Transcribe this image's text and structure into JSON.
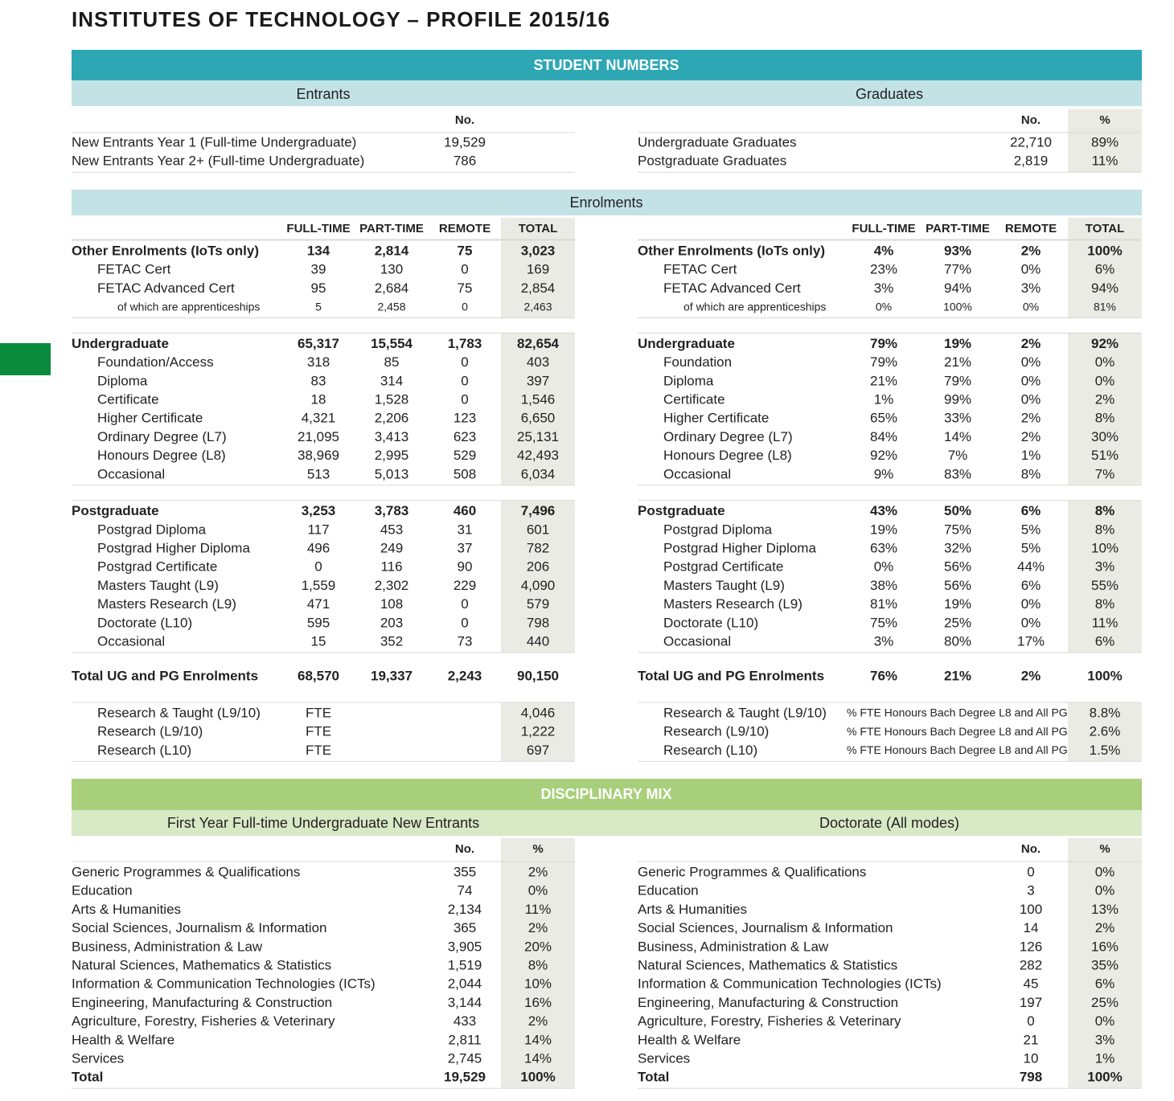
{
  "title": "INSTITUTES OF TECHNOLOGY – PROFILE 2015/16",
  "student_numbers": {
    "heading": "STUDENT NUMBERS",
    "entrants": {
      "heading": "Entrants",
      "columns": [
        "No."
      ],
      "rows": [
        [
          "New Entrants Year 1 (Full-time Undergraduate)",
          "19,529"
        ],
        [
          "New Entrants Year 2+ (Full-time Undergraduate)",
          "786"
        ]
      ]
    },
    "graduates": {
      "heading": "Graduates",
      "columns": [
        "No.",
        "%"
      ],
      "rows": [
        [
          "Undergraduate Graduates",
          "22,710",
          "89%"
        ],
        [
          "Postgraduate Graduates",
          "2,819",
          "11%"
        ]
      ]
    }
  },
  "enrolments": {
    "heading": "Enrolments",
    "numbers": {
      "columns": [
        "FULL-TIME",
        "PART-TIME",
        "REMOTE",
        "TOTAL"
      ],
      "groups": [
        {
          "total": [
            "Other Enrolments (IoTs only)",
            "134",
            "2,814",
            "75",
            "3,023"
          ],
          "items": [
            [
              "FETAC Cert",
              "39",
              "130",
              "0",
              "169"
            ],
            [
              "FETAC Advanced Cert",
              "95",
              "2,684",
              "75",
              "2,854"
            ]
          ],
          "detail": [
            [
              "of which are apprenticeships",
              "5",
              "2,458",
              "0",
              "2,463"
            ]
          ]
        },
        {
          "total": [
            "Undergraduate",
            "65,317",
            "15,554",
            "1,783",
            "82,654"
          ],
          "items": [
            [
              "Foundation/Access",
              "318",
              "85",
              "0",
              "403"
            ],
            [
              "Diploma",
              "83",
              "314",
              "0",
              "397"
            ],
            [
              "Certificate",
              "18",
              "1,528",
              "0",
              "1,546"
            ],
            [
              "Higher Certificate",
              "4,321",
              "2,206",
              "123",
              "6,650"
            ],
            [
              "Ordinary Degree (L7)",
              "21,095",
              "3,413",
              "623",
              "25,131"
            ],
            [
              "Honours Degree (L8)",
              "38,969",
              "2,995",
              "529",
              "42,493"
            ],
            [
              "Occasional",
              "513",
              "5,013",
              "508",
              "6,034"
            ]
          ]
        },
        {
          "total": [
            "Postgraduate",
            "3,253",
            "3,783",
            "460",
            "7,496"
          ],
          "items": [
            [
              "Postgrad Diploma",
              "117",
              "453",
              "31",
              "601"
            ],
            [
              "Postgrad Higher Diploma",
              "496",
              "249",
              "37",
              "782"
            ],
            [
              "Postgrad Certificate",
              "0",
              "116",
              "90",
              "206"
            ],
            [
              "Masters Taught (L9)",
              "1,559",
              "2,302",
              "229",
              "4,090"
            ],
            [
              "Masters Research (L9)",
              "471",
              "108",
              "0",
              "579"
            ],
            [
              "Doctorate (L10)",
              "595",
              "203",
              "0",
              "798"
            ],
            [
              "Occasional",
              "15",
              "352",
              "73",
              "440"
            ]
          ]
        }
      ],
      "grand_total": [
        "Total UG and PG Enrolments",
        "68,570",
        "19,337",
        "2,243",
        "90,150"
      ],
      "fte": [
        [
          "Research & Taught (L9/10)",
          "FTE",
          "4,046"
        ],
        [
          "Research (L9/10)",
          "FTE",
          "1,222"
        ],
        [
          "Research (L10)",
          "FTE",
          "697"
        ]
      ]
    },
    "shares": {
      "columns": [
        "FULL-TIME",
        "PART-TIME",
        "REMOTE",
        "TOTAL"
      ],
      "groups": [
        {
          "total": [
            "Other Enrolments (IoTs only)",
            "4%",
            "93%",
            "2%",
            "100%"
          ],
          "items": [
            [
              "FETAC Cert",
              "23%",
              "77%",
              "0%",
              "6%"
            ],
            [
              "FETAC Advanced Cert",
              "3%",
              "94%",
              "3%",
              "94%"
            ]
          ],
          "detail": [
            [
              "of which are apprenticeships",
              "0%",
              "100%",
              "0%",
              "81%"
            ]
          ]
        },
        {
          "total": [
            "Undergraduate",
            "79%",
            "19%",
            "2%",
            "92%"
          ],
          "items": [
            [
              "Foundation",
              "79%",
              "21%",
              "0%",
              "0%"
            ],
            [
              "Diploma",
              "21%",
              "79%",
              "0%",
              "0%"
            ],
            [
              "Certificate",
              "1%",
              "99%",
              "0%",
              "2%"
            ],
            [
              "Higher Certificate",
              "65%",
              "33%",
              "2%",
              "8%"
            ],
            [
              "Ordinary Degree (L7)",
              "84%",
              "14%",
              "2%",
              "30%"
            ],
            [
              "Honours Degree (L8)",
              "92%",
              "7%",
              "1%",
              "51%"
            ],
            [
              "Occasional",
              "9%",
              "83%",
              "8%",
              "7%"
            ]
          ]
        },
        {
          "total": [
            "Postgraduate",
            "43%",
            "50%",
            "6%",
            "8%"
          ],
          "items": [
            [
              "Postgrad Diploma",
              "19%",
              "75%",
              "5%",
              "8%"
            ],
            [
              "Postgrad Higher Diploma",
              "63%",
              "32%",
              "5%",
              "10%"
            ],
            [
              "Postgrad Certificate",
              "0%",
              "56%",
              "44%",
              "3%"
            ],
            [
              "Masters Taught (L9)",
              "38%",
              "56%",
              "6%",
              "55%"
            ],
            [
              "Masters Research (L9)",
              "81%",
              "19%",
              "0%",
              "8%"
            ],
            [
              "Doctorate (L10)",
              "75%",
              "25%",
              "0%",
              "11%"
            ],
            [
              "Occasional",
              "3%",
              "80%",
              "17%",
              "6%"
            ]
          ]
        }
      ],
      "grand_total": [
        "Total UG and PG Enrolments",
        "76%",
        "21%",
        "2%",
        "100%"
      ],
      "fte": [
        [
          "Research & Taught (L9/10)",
          "% FTE Honours Bach Degree L8 and All PG",
          "8.8%"
        ],
        [
          "Research (L9/10)",
          "% FTE Honours Bach Degree L8 and All PG",
          "2.6%"
        ],
        [
          "Research (L10)",
          "% FTE Honours Bach Degree L8 and All PG",
          "1.5%"
        ]
      ]
    }
  },
  "disciplinary_mix": {
    "heading": "DISCIPLINARY MIX",
    "new_entrants": {
      "heading": "First Year Full-time Undergraduate New Entrants",
      "columns": [
        "No.",
        "%"
      ],
      "rows": [
        [
          "Generic Programmes & Qualifications",
          "355",
          "2%"
        ],
        [
          "Education",
          "74",
          "0%"
        ],
        [
          "Arts & Humanities",
          "2,134",
          "11%"
        ],
        [
          "Social Sciences, Journalism & Information",
          "365",
          "2%"
        ],
        [
          "Business, Administration & Law",
          "3,905",
          "20%"
        ],
        [
          "Natural Sciences, Mathematics & Statistics",
          "1,519",
          "8%"
        ],
        [
          "Information & Communication Technologies (ICTs)",
          "2,044",
          "10%"
        ],
        [
          "Engineering, Manufacturing & Construction",
          "3,144",
          "16%"
        ],
        [
          "Agriculture, Forestry, Fisheries & Veterinary",
          "433",
          "2%"
        ],
        [
          "Health & Welfare",
          "2,811",
          "14%"
        ],
        [
          "Services",
          "2,745",
          "14%"
        ]
      ],
      "total": [
        "Total",
        "19,529",
        "100%"
      ]
    },
    "doctorate": {
      "heading": "Doctorate (All modes)",
      "columns": [
        "No.",
        "%"
      ],
      "rows": [
        [
          "Generic Programmes & Qualifications",
          "0",
          "0%"
        ],
        [
          "Education",
          "3",
          "0%"
        ],
        [
          "Arts & Humanities",
          "100",
          "13%"
        ],
        [
          "Social Sciences, Journalism & Information",
          "14",
          "2%"
        ],
        [
          "Business, Administration & Law",
          "126",
          "16%"
        ],
        [
          "Natural Sciences, Mathematics & Statistics",
          "282",
          "35%"
        ],
        [
          "Information & Communication Technologies (ICTs)",
          "45",
          "6%"
        ],
        [
          "Engineering, Manufacturing & Construction",
          "197",
          "25%"
        ],
        [
          "Agriculture, Forestry, Fisheries & Veterinary",
          "0",
          "0%"
        ],
        [
          "Health & Welfare",
          "21",
          "3%"
        ],
        [
          "Services",
          "10",
          "1%"
        ]
      ],
      "total": [
        "Total",
        "798",
        "100%"
      ]
    }
  }
}
